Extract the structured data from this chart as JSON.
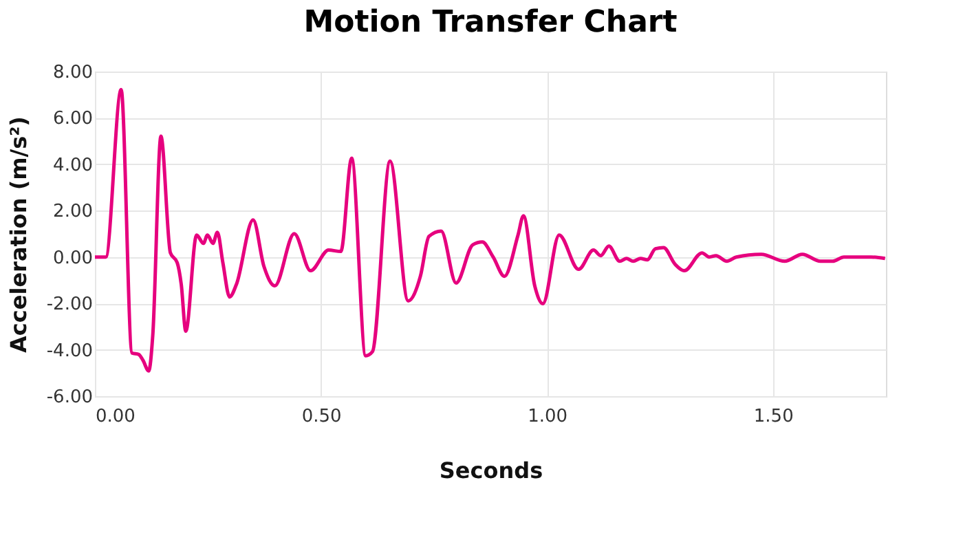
{
  "chart_data": {
    "type": "line",
    "title": "Motion Transfer Chart",
    "xlabel": "Seconds",
    "ylabel": "Acceleration (m/s²)",
    "x": [
      0,
      0.024,
      0.058,
      0.082,
      0.097,
      0.106,
      0.119,
      0.128,
      0.146,
      0.167,
      0.182,
      0.191,
      0.201,
      0.225,
      0.24,
      0.249,
      0.261,
      0.271,
      0.283,
      0.298,
      0.313,
      0.35,
      0.374,
      0.398,
      0.441,
      0.477,
      0.517,
      0.544,
      0.568,
      0.599,
      0.614,
      0.653,
      0.693,
      0.72,
      0.739,
      0.766,
      0.799,
      0.836,
      0.857,
      0.881,
      0.906,
      0.936,
      0.948,
      0.973,
      0.991,
      1.027,
      1.07,
      1.103,
      1.119,
      1.137,
      1.161,
      1.176,
      1.191,
      1.207,
      1.222,
      1.24,
      1.258,
      1.283,
      1.304,
      1.343,
      1.359,
      1.374,
      1.398,
      1.419,
      1.474,
      1.526,
      1.565,
      1.605,
      1.632,
      1.657,
      1.717,
      1.748
    ],
    "series": [
      {
        "color": "#e6007e",
        "values": [
          0,
          0,
          7.22,
          -4.14,
          -4.2,
          -4.44,
          -4.91,
          -3.37,
          5.21,
          0.18,
          -0.24,
          -1.18,
          -3.2,
          0.95,
          0.59,
          0.95,
          0.59,
          1.07,
          -0.24,
          -1.72,
          -1.18,
          1.6,
          -0.41,
          -1.24,
          1.01,
          -0.59,
          0.3,
          0.24,
          4.26,
          -4.26,
          -4.08,
          4.14,
          -1.89,
          -0.83,
          0.89,
          1.12,
          -1.12,
          0.53,
          0.65,
          0,
          -0.83,
          0.95,
          1.78,
          -1.24,
          -2.01,
          0.95,
          -0.53,
          0.3,
          0.06,
          0.47,
          -0.18,
          -0.06,
          -0.18,
          -0.06,
          -0.12,
          0.36,
          0.41,
          -0.3,
          -0.59,
          0.18,
          0,
          0.06,
          -0.18,
          0,
          0.12,
          -0.18,
          0.12,
          -0.18,
          -0.18,
          0,
          0,
          -0.06
        ]
      }
    ],
    "xlim": [
      0,
      1.75
    ],
    "ylim": [
      -6,
      8
    ],
    "xticks": [
      {
        "value": 0,
        "label": "0.00"
      },
      {
        "value": 0.5,
        "label": "0.50"
      },
      {
        "value": 1,
        "label": "1.00"
      },
      {
        "value": 1.5,
        "label": "1.50"
      }
    ],
    "yticks": [
      {
        "value": -6,
        "label": "-6.00"
      },
      {
        "value": -4,
        "label": "-4.00"
      },
      {
        "value": -2,
        "label": "-2.00"
      },
      {
        "value": 0,
        "label": "0.00"
      },
      {
        "value": 2,
        "label": "2.00"
      },
      {
        "value": 4,
        "label": "4.00"
      },
      {
        "value": 6,
        "label": "6.00"
      },
      {
        "value": 8,
        "label": "8.00"
      }
    ],
    "grid": true,
    "legend": false,
    "marker": "none",
    "line_style": "solid"
  }
}
